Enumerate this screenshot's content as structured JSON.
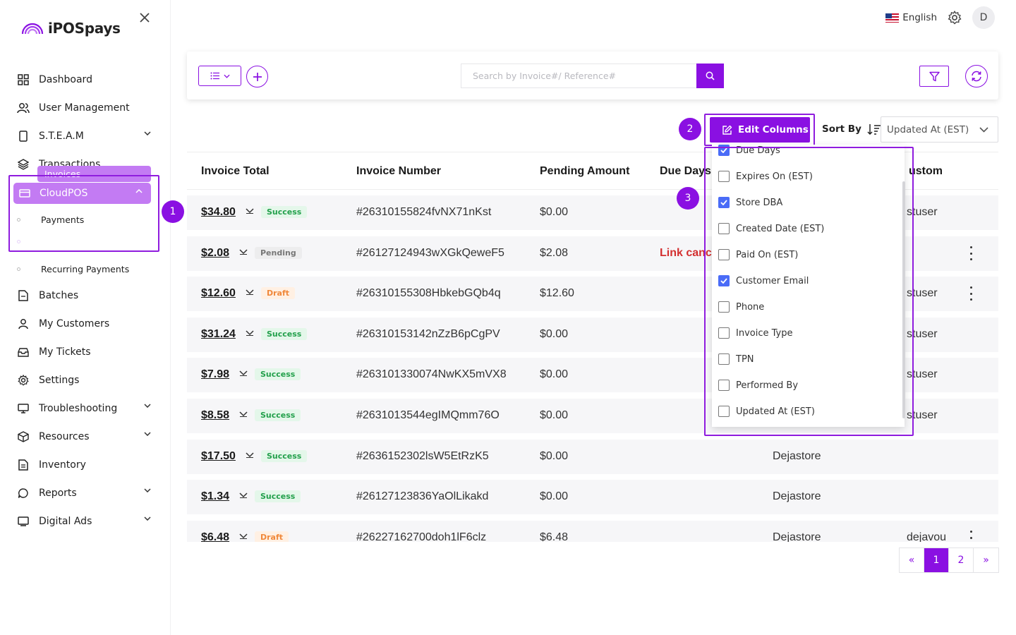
{
  "app": {
    "name": "iPOSpays"
  },
  "topbar": {
    "language": "English",
    "avatar_initial": "D"
  },
  "sidebar": {
    "items": [
      {
        "label": "Dashboard",
        "icon": "dashboard-icon"
      },
      {
        "label": "User Management",
        "icon": "users-icon"
      },
      {
        "label": "S.T.E.A.M",
        "icon": "phone-icon",
        "expandable": true
      },
      {
        "label": "Transactions",
        "icon": "layers-icon"
      }
    ],
    "cloudpos": {
      "label": "CloudPOS",
      "children": [
        "Payments",
        "Invoices"
      ],
      "active_child": "Invoices"
    },
    "after": [
      {
        "label": "Recurring Payments",
        "icon": "dot-icon"
      },
      {
        "label": "Batches",
        "icon": "batch-icon"
      },
      {
        "label": "My Customers",
        "icon": "customer-icon"
      },
      {
        "label": "My Tickets",
        "icon": "ticket-icon"
      },
      {
        "label": "Settings",
        "icon": "gear-icon"
      },
      {
        "label": "Troubleshooting",
        "icon": "monitor-icon",
        "expandable": true
      },
      {
        "label": "Resources",
        "icon": "box-icon",
        "expandable": true
      },
      {
        "label": "Inventory",
        "icon": "document-icon"
      },
      {
        "label": "Reports",
        "icon": "chat-icon",
        "expandable": true
      },
      {
        "label": "Digital Ads",
        "icon": "screen-icon",
        "expandable": true
      }
    ]
  },
  "search": {
    "placeholder": "Search by Invoice#/ Reference#"
  },
  "toolbar": {
    "edit_columns": "Edit Columns",
    "sort_by": "Sort By",
    "sort_value": "Updated At (EST)"
  },
  "badges": [
    "1",
    "2",
    "3"
  ],
  "table": {
    "headers": [
      "Invoice Total",
      "Invoice Number",
      "Pending Amount",
      "Due Days",
      "ustom"
    ],
    "rows": [
      {
        "amount": "$34.80",
        "status": "Success",
        "number": "#26310155824fvNX71nKst",
        "pending": "$0.00",
        "due": "",
        "store": "",
        "customer": "stuser",
        "kebab": false
      },
      {
        "amount": "$2.08",
        "status": "Pending",
        "number": "#26127124943wXGkQeweF5",
        "pending": "$2.08",
        "due": "Link canc",
        "store": "",
        "customer": "",
        "kebab": true
      },
      {
        "amount": "$12.60",
        "status": "Draft",
        "number": "#26310155308HbkebGQb4q",
        "pending": "$12.60",
        "due": "",
        "store": "",
        "customer": "stuser",
        "kebab": true
      },
      {
        "amount": "$31.24",
        "status": "Success",
        "number": "#26310153142nZzB6pCgPV",
        "pending": "$0.00",
        "due": "",
        "store": "",
        "customer": "stuser",
        "kebab": false
      },
      {
        "amount": "$7.98",
        "status": "Success",
        "number": "#263101330074NwKX5mVX8",
        "pending": "$0.00",
        "due": "",
        "store": "",
        "customer": "stuser",
        "kebab": false
      },
      {
        "amount": "$8.58",
        "status": "Success",
        "number": "#2631013544egIMQmm76O",
        "pending": "$0.00",
        "due": "",
        "store": "",
        "customer": "stuser",
        "kebab": false
      },
      {
        "amount": "$17.50",
        "status": "Success",
        "number": "#2636152302lsW5EtRzK5",
        "pending": "$0.00",
        "due": "",
        "store": "Dejastore",
        "customer": "",
        "kebab": false
      },
      {
        "amount": "$1.34",
        "status": "Success",
        "number": "#26127123836YaOlLikakd",
        "pending": "$0.00",
        "due": "",
        "store": "Dejastore",
        "customer": "",
        "kebab": false
      },
      {
        "amount": "$6.48",
        "status": "Draft",
        "number": "#26227162700doh1lF6clz",
        "pending": "$6.48",
        "due": "",
        "store": "Dejastore",
        "customer": "dejavou",
        "kebab": true
      }
    ]
  },
  "column_menu": {
    "items": [
      {
        "label": "Due Days",
        "checked": true
      },
      {
        "label": "Expires On (EST)",
        "checked": false
      },
      {
        "label": "Store DBA",
        "checked": true
      },
      {
        "label": "Created Date (EST)",
        "checked": false
      },
      {
        "label": "Paid On (EST)",
        "checked": false
      },
      {
        "label": "Customer Email",
        "checked": true
      },
      {
        "label": "Phone",
        "checked": false
      },
      {
        "label": "Invoice Type",
        "checked": false
      },
      {
        "label": "TPN",
        "checked": false
      },
      {
        "label": "Performed By",
        "checked": false
      },
      {
        "label": "Updated At (EST)",
        "checked": false
      }
    ]
  },
  "pagination": {
    "prev": "«",
    "pages": [
      "1",
      "2"
    ],
    "current": "1",
    "next": "»"
  },
  "colors": {
    "accent": "#8a10e2",
    "accent_light": "#c37bf3",
    "success": "#22a04b",
    "draft": "#f0883a",
    "danger": "#d32f2f",
    "checkbox": "#4a6cf7"
  }
}
